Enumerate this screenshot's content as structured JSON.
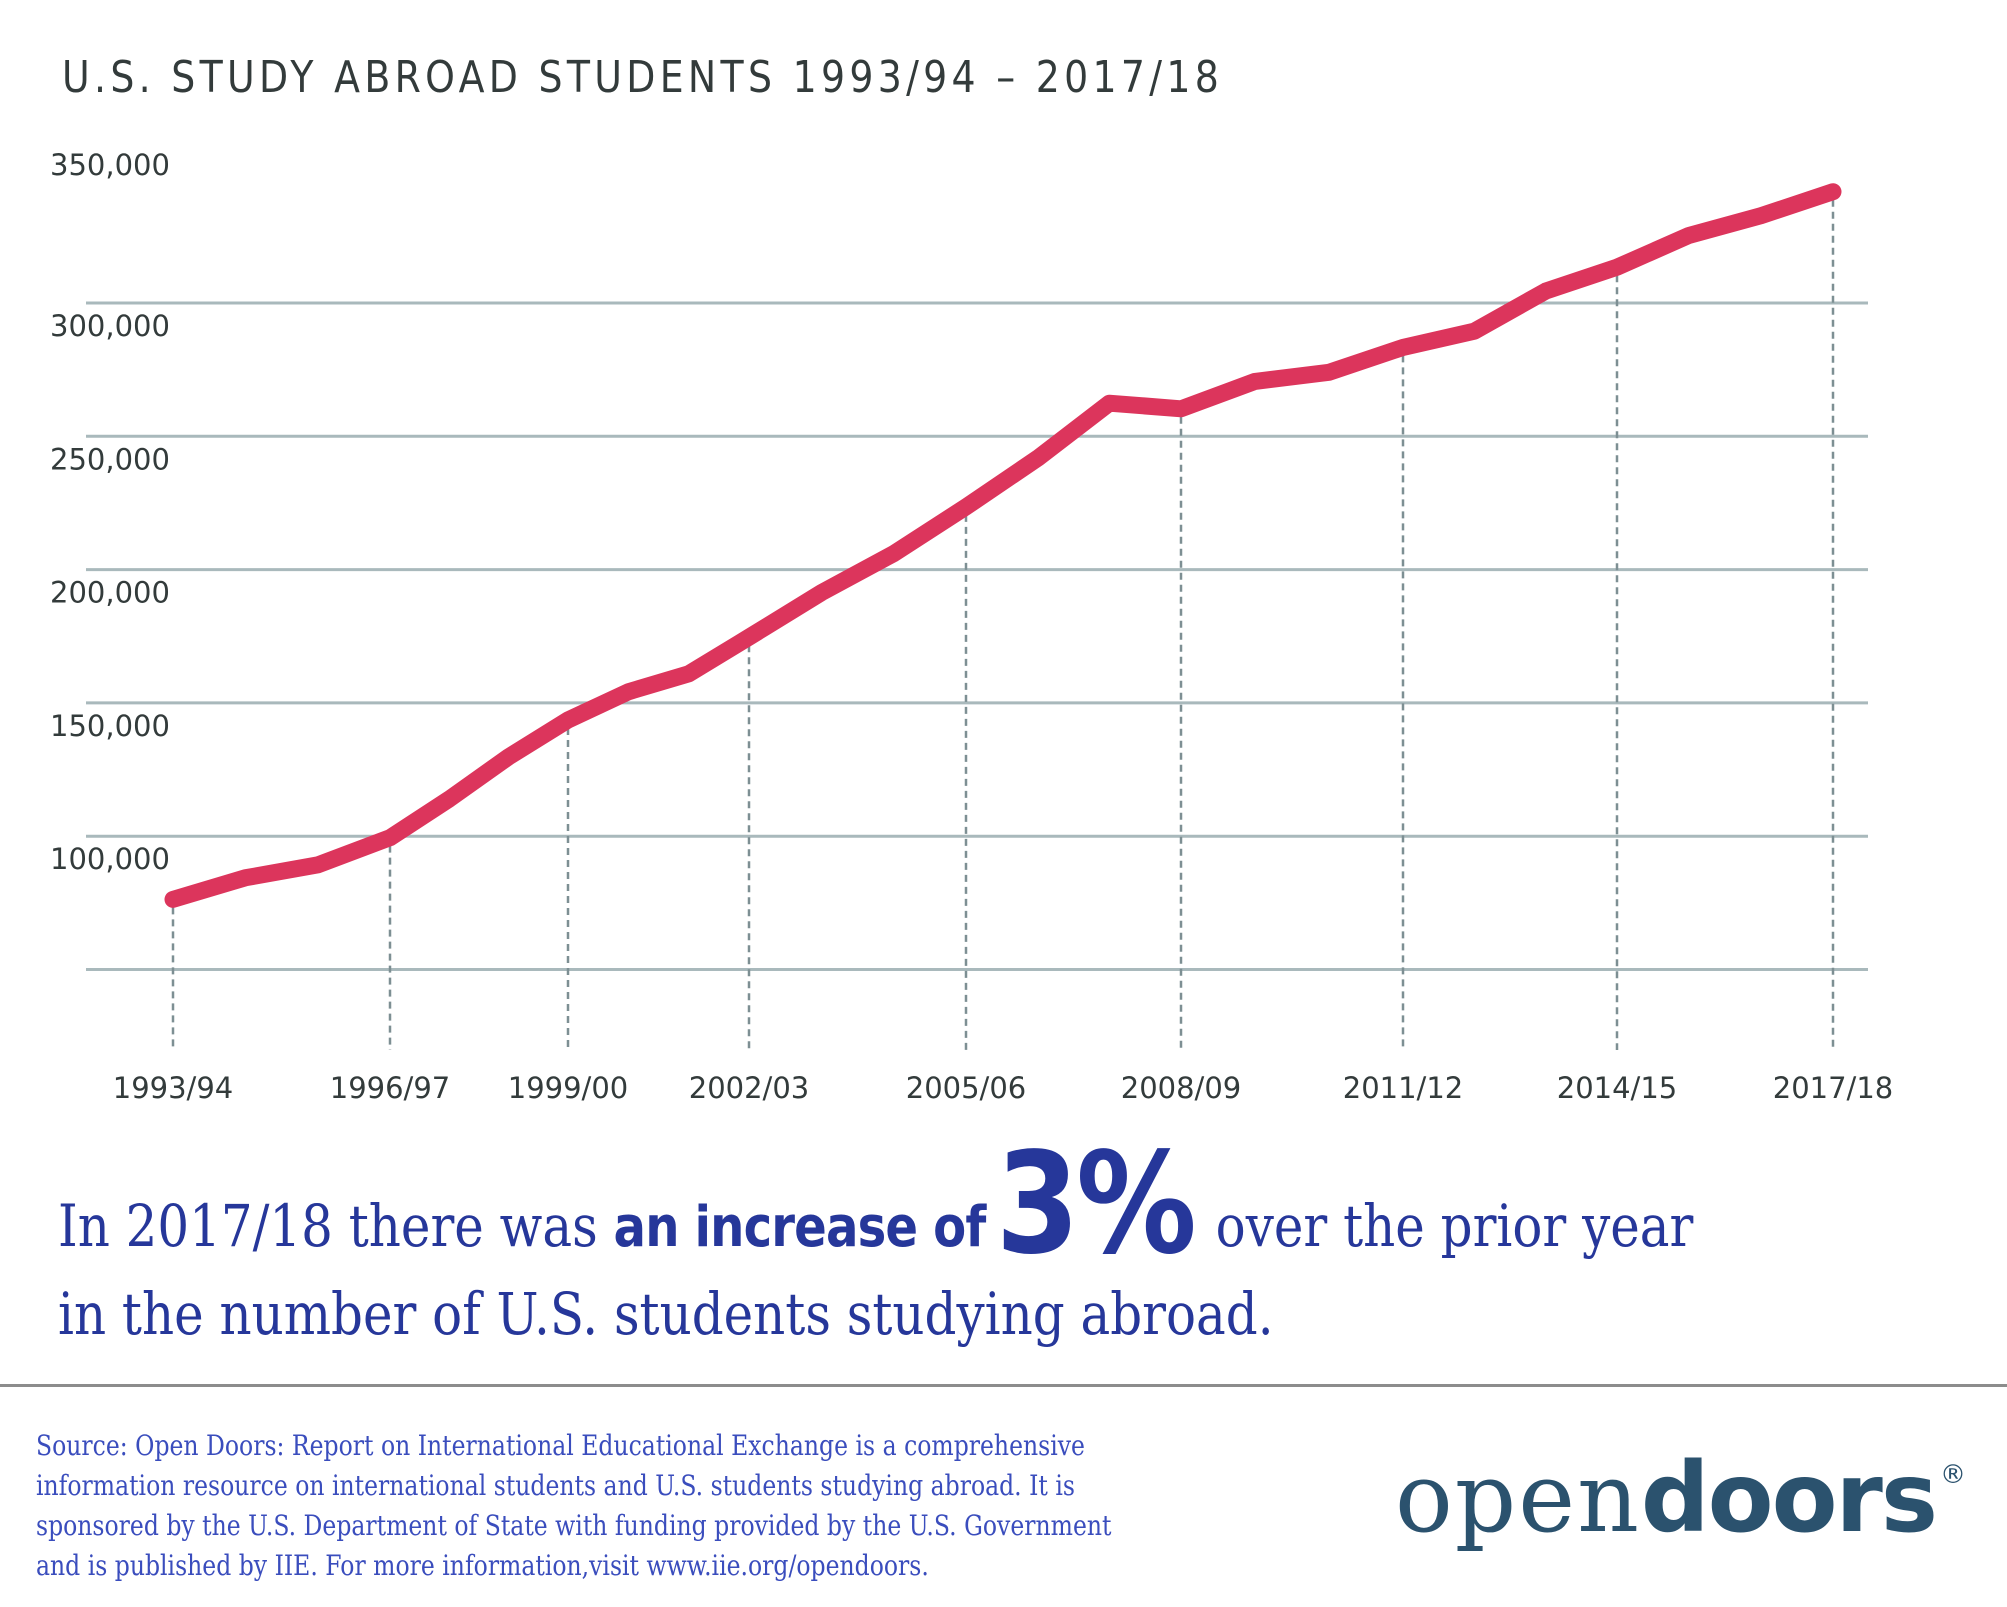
{
  "chart_data": {
    "type": "line",
    "title": "U.S. STUDY ABROAD STUDENTS 1993/94 – 2017/18",
    "xlabel": "",
    "ylabel": "",
    "ylim": [
      25000,
      350000
    ],
    "grid": true,
    "legend": "none",
    "y_ticks": [
      50000,
      100000,
      150000,
      200000,
      250000,
      300000,
      350000
    ],
    "y_tick_labels": [
      "",
      "100,000",
      "150,000",
      "200,000",
      "250,000",
      "300,000",
      "350,000"
    ],
    "x": [
      "1993/94",
      "1994/95",
      "1995/96",
      "1996/97",
      "1997/98",
      "1998/99",
      "1999/00",
      "2000/01",
      "2001/02",
      "2002/03",
      "2003/04",
      "2004/05",
      "2005/06",
      "2006/07",
      "2007/08",
      "2008/09",
      "2009/10",
      "2010/11",
      "2011/12",
      "2012/13",
      "2013/14",
      "2014/15",
      "2015/16",
      "2016/17",
      "2017/18"
    ],
    "x_tick_labels": [
      "1993/94",
      "1996/97",
      "1999/00",
      "2002/03",
      "2005/06",
      "2008/09",
      "2011/12",
      "2014/15",
      "2017/18"
    ],
    "series": [
      {
        "name": "U.S. study abroad students",
        "color": "#dc355c",
        "values": [
          76302,
          84403,
          89242,
          99448,
          113959,
          129770,
          143590,
          154168,
          160920,
          174629,
          191321,
          205983,
          223534,
          241791,
          262416,
          260327,
          270604,
          273996,
          283332,
          289408,
          304467,
          313415,
          325339,
          332727,
          341751
        ]
      }
    ]
  },
  "colors": {
    "line": "#dc355c",
    "grid": "#a9b9bc",
    "axis_text": "#333b3b",
    "headline": "#26379a",
    "source": "#3a4dbd",
    "logo": "#2b526e"
  },
  "headline": {
    "prefix": "In 2017/18 there was ",
    "bold": "an increase of",
    "percent": "3%",
    "suffix": "over the prior year",
    "line2": "in the number of U.S. students studying abroad."
  },
  "source": {
    "lines": [
      "Source: Open Doors: Report on International Educational Exchange is a comprehensive",
      "information resource on international students and U.S. students studying abroad.  It is",
      "sponsored by the U.S. Department of State with funding provided by the U.S. Government",
      "and is published by IIE. For more information,visit www.iie.org/opendoors."
    ]
  },
  "logo": {
    "light": "open",
    "heavy": "doors",
    "mark": "®"
  }
}
